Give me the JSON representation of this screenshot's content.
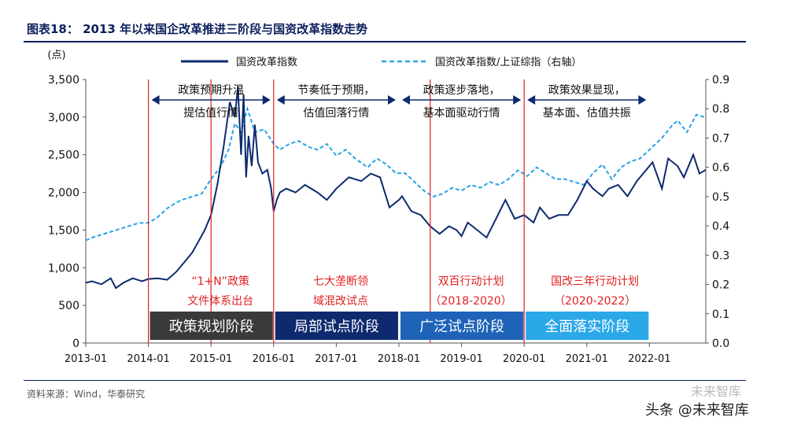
{
  "title": "图表18： 2013 年以来国企改革推进三阶段与国资改革指数走势",
  "source": "资料来源：Wind，华泰研究",
  "watermark": {
    "top": "未来智库",
    "bottom": "头条 @未来智库"
  },
  "colors": {
    "index_line": "#0d2a6e",
    "ratio_line": "#29a3e6",
    "divider": "#e02020",
    "annotation_red": "#e02020",
    "phase_dark": "#3a3a3a",
    "phase_navy": "#0d2a6e",
    "phase_blue": "#1e63b8",
    "phase_light": "#2ba8e8"
  },
  "chart_data": {
    "type": "line",
    "title": "2013 年以来国企改革推进三阶段与国资改革指数走势",
    "ylabel": "(点)",
    "ylim": [
      0,
      3500
    ],
    "y_ticks": [
      "0",
      "500",
      "1,000",
      "1,500",
      "2,000",
      "2,500",
      "3,000",
      "3,500"
    ],
    "y2lim": [
      0,
      0.9
    ],
    "y2_ticks": [
      "0.0",
      "0.1",
      "0.2",
      "0.3",
      "0.4",
      "0.5",
      "0.6",
      "0.7",
      "0.8",
      "0.9"
    ],
    "x_ticks": [
      "2013-01",
      "2014-01",
      "2015-01",
      "2016-01",
      "2017-01",
      "2018-01",
      "2019-01",
      "2020-01",
      "2021-01",
      "2022-01"
    ],
    "x_range": [
      2013.0,
      2022.9
    ],
    "legend": [
      {
        "name": "国资改革指数",
        "style": "solid"
      },
      {
        "name": "国资改革指数/上证综指（右轴）",
        "style": "dashed"
      }
    ],
    "series": [
      {
        "name": "国资改革指数",
        "axis": "left",
        "x": [
          2013.0,
          2013.1,
          2013.25,
          2013.4,
          2013.48,
          2013.6,
          2013.75,
          2013.9,
          2014.0,
          2014.15,
          2014.3,
          2014.45,
          2014.55,
          2014.7,
          2014.8,
          2014.9,
          2015.0,
          2015.1,
          2015.2,
          2015.3,
          2015.38,
          2015.43,
          2015.48,
          2015.52,
          2015.56,
          2015.6,
          2015.65,
          2015.7,
          2015.75,
          2015.82,
          2015.9,
          2015.96,
          2016.0,
          2016.05,
          2016.1,
          2016.2,
          2016.35,
          2016.5,
          2016.7,
          2016.85,
          2017.0,
          2017.2,
          2017.4,
          2017.55,
          2017.7,
          2017.85,
          2018.0,
          2018.05,
          2018.2,
          2018.35,
          2018.5,
          2018.65,
          2018.8,
          2018.92,
          2019.0,
          2019.1,
          2019.25,
          2019.4,
          2019.55,
          2019.7,
          2019.85,
          2020.0,
          2020.15,
          2020.25,
          2020.4,
          2020.55,
          2020.7,
          2020.85,
          2021.0,
          2021.1,
          2021.25,
          2021.35,
          2021.5,
          2021.65,
          2021.8,
          2021.95,
          2022.05,
          2022.2,
          2022.3,
          2022.45,
          2022.55,
          2022.7,
          2022.8,
          2022.9
        ],
        "values": [
          800,
          820,
          780,
          860,
          730,
          800,
          860,
          820,
          850,
          860,
          840,
          950,
          1050,
          1200,
          1350,
          1500,
          1700,
          2100,
          2600,
          3200,
          3000,
          3400,
          2500,
          3300,
          2200,
          2750,
          2350,
          2900,
          2400,
          2250,
          2300,
          2050,
          1750,
          1900,
          2000,
          2050,
          2000,
          2100,
          2000,
          1900,
          2050,
          2200,
          2150,
          2250,
          2200,
          1800,
          1900,
          1950,
          1750,
          1700,
          1550,
          1450,
          1550,
          1500,
          1420,
          1600,
          1500,
          1400,
          1650,
          1900,
          1650,
          1700,
          1600,
          1800,
          1650,
          1700,
          1700,
          1900,
          2150,
          2050,
          1950,
          2050,
          2100,
          1950,
          2150,
          2300,
          2400,
          2050,
          2450,
          2350,
          2200,
          2500,
          2250,
          2300
        ]
      },
      {
        "name": "国资改革指数/上证综指（右轴）",
        "axis": "right",
        "x": [
          2013.0,
          2013.1,
          2013.25,
          2013.4,
          2013.55,
          2013.7,
          2013.85,
          2014.0,
          2014.15,
          2014.3,
          2014.45,
          2014.55,
          2014.7,
          2014.85,
          2015.0,
          2015.15,
          2015.28,
          2015.38,
          2015.48,
          2015.58,
          2015.7,
          2015.85,
          2016.0,
          2016.1,
          2016.25,
          2016.4,
          2016.55,
          2016.7,
          2016.85,
          2017.0,
          2017.15,
          2017.3,
          2017.5,
          2017.65,
          2017.8,
          2017.95,
          2018.1,
          2018.25,
          2018.4,
          2018.55,
          2018.7,
          2018.85,
          2019.0,
          2019.15,
          2019.3,
          2019.45,
          2019.6,
          2019.75,
          2019.9,
          2020.05,
          2020.2,
          2020.35,
          2020.5,
          2020.65,
          2020.8,
          2020.95,
          2021.1,
          2021.25,
          2021.4,
          2021.55,
          2021.7,
          2021.85,
          2022.0,
          2022.1,
          2022.2,
          2022.35,
          2022.45,
          2022.6,
          2022.75,
          2022.9
        ],
        "values": [
          0.35,
          0.36,
          0.37,
          0.38,
          0.39,
          0.4,
          0.41,
          0.41,
          0.43,
          0.46,
          0.48,
          0.49,
          0.5,
          0.51,
          0.56,
          0.6,
          0.66,
          0.75,
          0.72,
          0.8,
          0.72,
          0.73,
          0.68,
          0.66,
          0.68,
          0.69,
          0.67,
          0.66,
          0.68,
          0.64,
          0.66,
          0.63,
          0.6,
          0.63,
          0.61,
          0.58,
          0.58,
          0.55,
          0.52,
          0.5,
          0.51,
          0.53,
          0.52,
          0.54,
          0.53,
          0.55,
          0.54,
          0.56,
          0.59,
          0.57,
          0.6,
          0.58,
          0.56,
          0.56,
          0.55,
          0.54,
          0.58,
          0.61,
          0.56,
          0.6,
          0.62,
          0.63,
          0.66,
          0.68,
          0.7,
          0.74,
          0.76,
          0.72,
          0.78,
          0.77
        ]
      }
    ],
    "dividers_x": [
      2014.0,
      2015.0,
      2016.0,
      2018.5,
      2020.0
    ],
    "upper_annotations": [
      {
        "x_start": 2014.0,
        "x_end": 2016.0,
        "lines": [
          "政策预期升温",
          "提估值行情"
        ]
      },
      {
        "x_start": 2016.0,
        "x_end": 2018.0,
        "lines": [
          "节奏低于预期，",
          "估值回落行情"
        ]
      },
      {
        "x_start": 2018.0,
        "x_end": 2020.0,
        "lines": [
          "政策逐步落地，",
          "基本面驱动行情"
        ]
      },
      {
        "x_start": 2020.0,
        "x_end": 2022.0,
        "lines": [
          "政策效果显现，",
          "基本面、估值共振"
        ]
      }
    ],
    "red_annotations": [
      {
        "x": 2015.0,
        "lines": [
          "“1+N”政策",
          "文件体系出台"
        ]
      },
      {
        "x": 2017.0,
        "lines": [
          "七大垄断领",
          "域混改试点"
        ]
      },
      {
        "x": 2019.0,
        "lines": [
          "双百行动计划",
          "（2018-2020）"
        ]
      },
      {
        "x": 2021.0,
        "lines": [
          "国改三年行动计划",
          "（2020-2022）"
        ]
      }
    ],
    "phases": [
      {
        "label": "政策规划阶段",
        "x_start": 2014.0,
        "x_end": 2016.0
      },
      {
        "label": "局部试点阶段",
        "x_start": 2016.0,
        "x_end": 2018.0
      },
      {
        "label": "广泛试点阶段",
        "x_start": 2018.0,
        "x_end": 2020.0
      },
      {
        "label": "全面落实阶段",
        "x_start": 2020.0,
        "x_end": 2022.0
      }
    ]
  }
}
